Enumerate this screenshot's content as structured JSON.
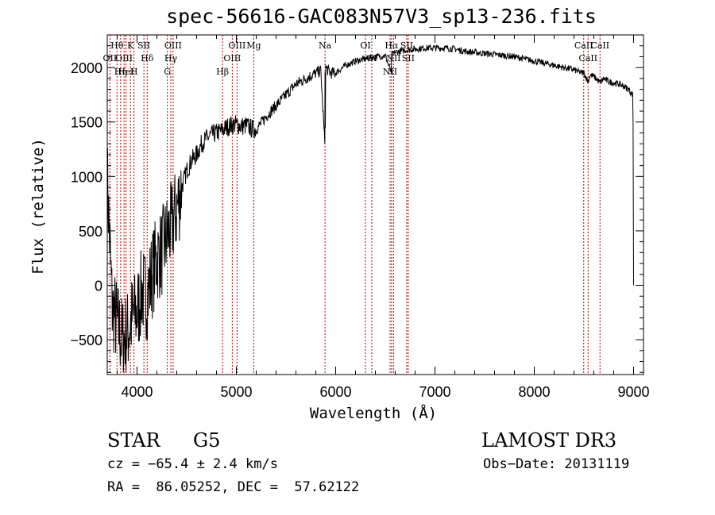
{
  "chart_data": {
    "type": "line",
    "title": "spec-56616-GAC083N57V3_sp13-236.fits",
    "xlabel": "Wavelength (Å)",
    "ylabel": "Flux (relative)",
    "xlim": [
      3700,
      9100
    ],
    "ylim": [
      -820,
      2300
    ],
    "xticks": [
      4000,
      5000,
      6000,
      7000,
      8000,
      9000
    ],
    "yticks": [
      -500,
      0,
      500,
      1000,
      1500,
      2000
    ],
    "series": [
      {
        "name": "spectrum",
        "x": [
          3700,
          3750,
          3800,
          3850,
          3900,
          3950,
          4000,
          4050,
          4100,
          4150,
          4200,
          4250,
          4300,
          4350,
          4400,
          4450,
          4500,
          4550,
          4600,
          4650,
          4700,
          4750,
          4800,
          4850,
          4900,
          4950,
          5000,
          5050,
          5100,
          5150,
          5200,
          5300,
          5400,
          5500,
          5600,
          5700,
          5800,
          5850,
          5890,
          5893,
          5896,
          5900,
          5950,
          6000,
          6100,
          6200,
          6300,
          6400,
          6500,
          6560,
          6563,
          6570,
          6600,
          6700,
          6800,
          6900,
          7000,
          7100,
          7200,
          7300,
          7400,
          7500,
          7600,
          7700,
          7800,
          7900,
          8000,
          8100,
          8200,
          8300,
          8400,
          8450,
          8500,
          8542,
          8560,
          8600,
          8662,
          8700,
          8750,
          8800,
          8850,
          8900,
          8950,
          8990,
          8995,
          9000
        ],
        "y": [
          1000,
          -200,
          -350,
          -500,
          -450,
          -300,
          -250,
          -50,
          -100,
          100,
          250,
          300,
          450,
          550,
          700,
          900,
          1050,
          1150,
          1200,
          1300,
          1350,
          1380,
          1400,
          1420,
          1450,
          1470,
          1480,
          1460,
          1470,
          1440,
          1430,
          1550,
          1650,
          1750,
          1850,
          1900,
          1950,
          1970,
          1300,
          1980,
          1500,
          2000,
          1950,
          1950,
          2020,
          2060,
          2080,
          2100,
          2110,
          1950,
          2100,
          2120,
          2140,
          2160,
          2170,
          2180,
          2180,
          2180,
          2170,
          2150,
          2140,
          2130,
          2120,
          2110,
          2100,
          2080,
          2060,
          2040,
          2020,
          2000,
          1980,
          1960,
          1950,
          1870,
          1930,
          1920,
          1860,
          1900,
          1870,
          1860,
          1850,
          1830,
          1800,
          1750,
          1500,
          0
        ]
      }
    ],
    "lines": [
      {
        "label": "Hθ",
        "x": 3798
      },
      {
        "label": "OII",
        "x": 3727
      },
      {
        "label": "OIII",
        "x": 3869
      },
      {
        "label": "K",
        "x": 3934
      },
      {
        "label": "H",
        "x": 3969
      },
      {
        "label": "HeI",
        "x": 3889
      },
      {
        "label": "Hη",
        "x": 3835
      },
      {
        "label": "SII",
        "x": 4069
      },
      {
        "label": "Hδ",
        "x": 4102
      },
      {
        "label": "OIII",
        "x": 4363
      },
      {
        "label": "Hγ",
        "x": 4340
      },
      {
        "label": "G",
        "x": 4305
      },
      {
        "label": "OIII",
        "x": 5007
      },
      {
        "label": "OIII",
        "x": 4959
      },
      {
        "label": "Hβ",
        "x": 4861
      },
      {
        "label": "Mg",
        "x": 5175
      },
      {
        "label": "Na",
        "x": 5893
      },
      {
        "label": "OI",
        "x": 6300
      },
      {
        "label": "OI",
        "x": 6364
      },
      {
        "label": "Hα",
        "x": 6563
      },
      {
        "label": "NII",
        "x": 6583
      },
      {
        "label": "NII",
        "x": 6548
      },
      {
        "label": "SII",
        "x": 6716
      },
      {
        "label": "SII",
        "x": 6731
      },
      {
        "label": "CaII",
        "x": 8498
      },
      {
        "label": "CaII",
        "x": 8542
      },
      {
        "label": "CaII",
        "x": 8662
      }
    ]
  },
  "info": {
    "object_type": "STAR",
    "subclass": "G5",
    "survey": "LAMOST DR3",
    "cz": "cz = −65.4 ± 2.4 km/s",
    "obs_date": "Obs−Date: 20131119",
    "coords": "RA =  86.05252, DEC =  57.62122"
  },
  "colors": {
    "line_marker": "#b30000",
    "spectrum": "#000000"
  }
}
